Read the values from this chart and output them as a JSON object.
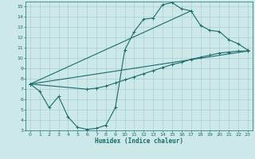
{
  "title": "",
  "xlabel": "Humidex (Indice chaleur)",
  "ylabel": "",
  "bg_color": "#cce8e8",
  "grid_color": "#aacfcf",
  "line_color": "#1a6b6b",
  "xlim": [
    -0.5,
    23.5
  ],
  "ylim": [
    3,
    15.5
  ],
  "xticks": [
    0,
    1,
    2,
    3,
    4,
    5,
    6,
    7,
    8,
    9,
    10,
    11,
    12,
    13,
    14,
    15,
    16,
    17,
    18,
    19,
    20,
    21,
    22,
    23
  ],
  "yticks": [
    3,
    4,
    5,
    6,
    7,
    8,
    9,
    10,
    11,
    12,
    13,
    14,
    15
  ],
  "lines": [
    {
      "x": [
        0,
        1,
        2,
        3,
        4,
        5,
        6,
        7,
        8,
        9,
        10,
        11,
        12,
        13,
        14,
        15,
        16,
        17
      ],
      "y": [
        7.5,
        6.8,
        5.2,
        6.3,
        4.3,
        3.3,
        3.1,
        3.2,
        3.5,
        5.2,
        10.8,
        12.6,
        13.8,
        13.9,
        15.2,
        15.4,
        14.8,
        14.6
      ]
    },
    {
      "x": [
        0,
        17,
        18,
        19,
        20,
        21,
        22,
        23
      ],
      "y": [
        7.5,
        14.6,
        13.2,
        12.7,
        12.6,
        11.8,
        11.4,
        10.8
      ]
    },
    {
      "x": [
        0,
        23
      ],
      "y": [
        7.5,
        10.7
      ]
    },
    {
      "x": [
        0,
        6,
        7,
        8,
        9,
        10,
        11,
        12,
        13,
        14,
        15,
        16,
        17,
        18,
        19,
        20,
        21,
        22,
        23
      ],
      "y": [
        7.5,
        7.0,
        7.1,
        7.3,
        7.6,
        7.9,
        8.2,
        8.5,
        8.8,
        9.1,
        9.4,
        9.6,
        9.9,
        10.1,
        10.3,
        10.5,
        10.6,
        10.7,
        10.7
      ]
    }
  ]
}
